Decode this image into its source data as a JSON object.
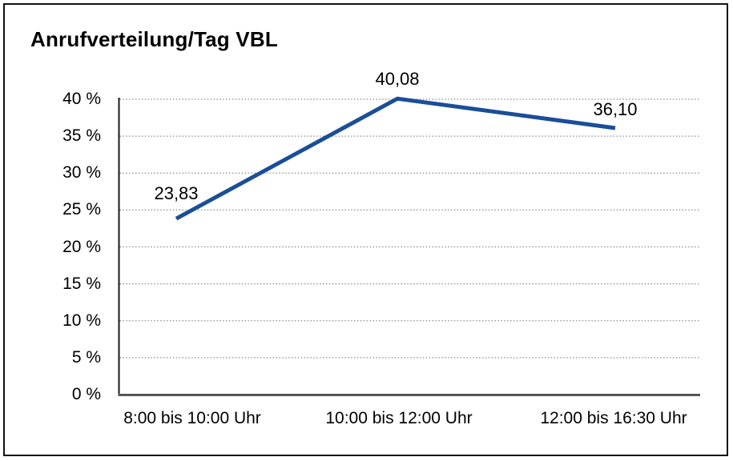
{
  "chart_data": {
    "type": "line",
    "title": "Anrufverteilung/Tag VBL",
    "categories": [
      "8:00 bis 10:00 Uhr",
      "10:00 bis 12:00 Uhr",
      "12:00 bis 16:30 Uhr"
    ],
    "values": [
      23.83,
      40.08,
      36.1
    ],
    "data_labels": [
      "23,83",
      "40,08",
      "36,10"
    ],
    "ytick_labels": [
      "0 %",
      "5 %",
      "10 %",
      "15 %",
      "20 %",
      "25 %",
      "30 %",
      "35 %",
      "40 %"
    ],
    "ylim": [
      0,
      40
    ],
    "ytick_step": 5,
    "xlabel": "",
    "ylabel": "",
    "legend": "none",
    "grid": "horizontal-dotted",
    "line_color": "#1A4E99",
    "gridline_color": "#8c8c8c",
    "axis_color": "#1a1a1a",
    "baseline_color": "#565656",
    "text_color": "#000000"
  }
}
